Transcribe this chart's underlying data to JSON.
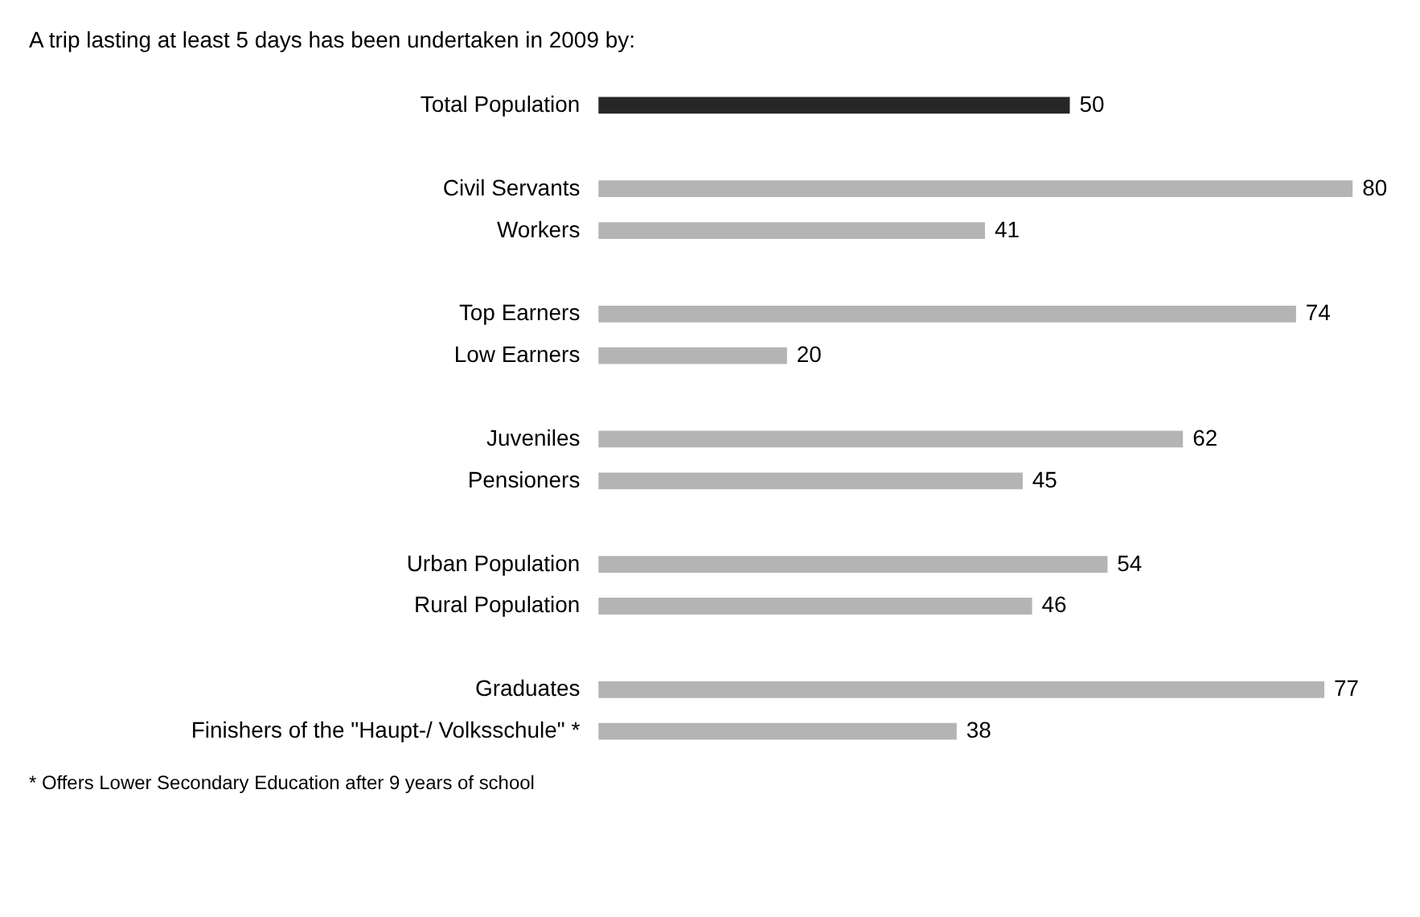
{
  "chart_data": {
    "type": "bar",
    "orientation": "horizontal",
    "title": "A trip lasting at least 5 days has been undertaken in 2009 by:",
    "categories": [
      "Total Population",
      null,
      "Civil Servants",
      "Workers",
      null,
      "Top Earners",
      "Low Earners",
      null,
      "Juveniles",
      "Pensioners",
      null,
      "Urban Population",
      "Rural Population",
      null,
      "Graduates",
      "Finishers of the \"Haupt-/ Volksschule\" *"
    ],
    "values": [
      50,
      null,
      80,
      41,
      null,
      74,
      20,
      null,
      62,
      45,
      null,
      54,
      46,
      null,
      77,
      38
    ],
    "colors": [
      "#262626",
      null,
      "#b4b4b4",
      "#b4b4b4",
      null,
      "#b4b4b4",
      "#b4b4b4",
      null,
      "#b4b4b4",
      "#b4b4b4",
      null,
      "#b4b4b4",
      "#b4b4b4",
      null,
      "#b4b4b4",
      "#b4b4b4"
    ],
    "data_labels": true,
    "annotations": [
      "* Offers Lower Secondary Education after 9 years of school"
    ]
  }
}
